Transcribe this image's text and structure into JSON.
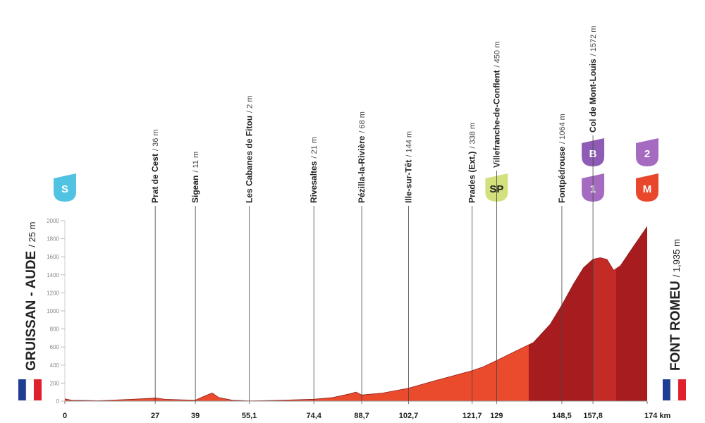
{
  "chart_data": {
    "type": "area",
    "x": [
      0,
      2,
      10,
      20,
      25,
      27,
      30,
      35,
      39,
      42,
      44,
      46,
      50,
      55.1,
      65,
      74.4,
      80,
      85,
      87,
      88.7,
      95,
      102.7,
      110,
      115,
      121.7,
      125,
      129,
      135,
      140,
      145,
      148.5,
      152,
      155,
      157.8,
      160,
      162,
      164,
      166,
      170,
      174
    ],
    "values": [
      25,
      10,
      5,
      20,
      30,
      36,
      20,
      15,
      11,
      60,
      90,
      40,
      10,
      2,
      10,
      21,
      40,
      80,
      100,
      68,
      90,
      144,
      220,
      270,
      338,
      380,
      450,
      560,
      650,
      850,
      1064,
      1300,
      1480,
      1572,
      1590,
      1570,
      1450,
      1500,
      1720,
      1935
    ],
    "color": "#ea4b2c",
    "shading": [
      {
        "from": 138.6,
        "to": 157.8,
        "color": "#a71c1f"
      },
      {
        "from": 157.8,
        "to": 164.7,
        "color": "#c42b27"
      },
      {
        "from": 164.7,
        "to": 174,
        "color": "#a71c1f"
      }
    ],
    "xlim": [
      0,
      174
    ],
    "ylim": [
      0,
      2000
    ],
    "xticks": [
      0,
      27,
      39,
      {
        "value": 55.1,
        "label": "55,1"
      },
      {
        "value": 74.4,
        "label": "74,4"
      },
      {
        "value": 88.7,
        "label": "88,7"
      },
      {
        "value": 102.7,
        "label": "102,7"
      },
      {
        "value": 121.7,
        "label": "121,7"
      },
      129,
      {
        "value": 148.5,
        "label": "148,5"
      },
      {
        "value": 157.8,
        "label": "157,8"
      },
      {
        "value": 174,
        "label": "174 km"
      }
    ],
    "yticks": [
      0,
      200,
      400,
      600,
      800,
      1000,
      1200,
      1400,
      1600,
      1800,
      2000
    ],
    "start": {
      "name": "GRUISSAN - AUDE",
      "altitude": "/ 25 m",
      "badges": [
        {
          "label": "S",
          "color": "#4fc3e1"
        }
      ]
    },
    "finish": {
      "name": "FONT ROMEU",
      "altitude": "/ 1,935 m",
      "badges": [
        {
          "label": "2",
          "color": "#a56bc0"
        },
        {
          "label": "M",
          "color": "#e9472b"
        }
      ]
    },
    "waypoints": [
      {
        "name": "Prat de Cest",
        "altitude": "/ 36 m",
        "km": 27,
        "badges": []
      },
      {
        "name": "Sigean",
        "altitude": "/ 11 m",
        "km": 39,
        "badges": []
      },
      {
        "name": "Les Cabanes de Fitou",
        "altitude": "/ 2 m",
        "km": 55.1,
        "badges": []
      },
      {
        "name": "Rivesaltes",
        "altitude": "/ 21 m",
        "km": 74.4,
        "badges": []
      },
      {
        "name": "Pézilla-la-Rivière",
        "altitude": "/ 68 m",
        "km": 88.7,
        "badges": []
      },
      {
        "name": "Ille-sur-Têt",
        "altitude": "/ 144 m",
        "km": 102.7,
        "badges": []
      },
      {
        "name": "Prades (Ext.)",
        "altitude": "/ 338 m",
        "km": 121.7,
        "badges": []
      },
      {
        "name": "Villefranche-de-Conflent",
        "altitude": "/ 450 m",
        "km": 129,
        "badges": [
          {
            "label": "SP",
            "color": "#d3e07c"
          }
        ]
      },
      {
        "name": "Fontpédrouse",
        "altitude": "/ 1064 m",
        "km": 148.5,
        "badges": []
      },
      {
        "name": "Col de Mont-Louis",
        "altitude": "/ 1572 m",
        "km": 157.8,
        "badges": [
          {
            "label": "B",
            "color": "#8e5bb5"
          },
          {
            "label": "1",
            "color": "#a56bc0"
          }
        ]
      }
    ]
  }
}
